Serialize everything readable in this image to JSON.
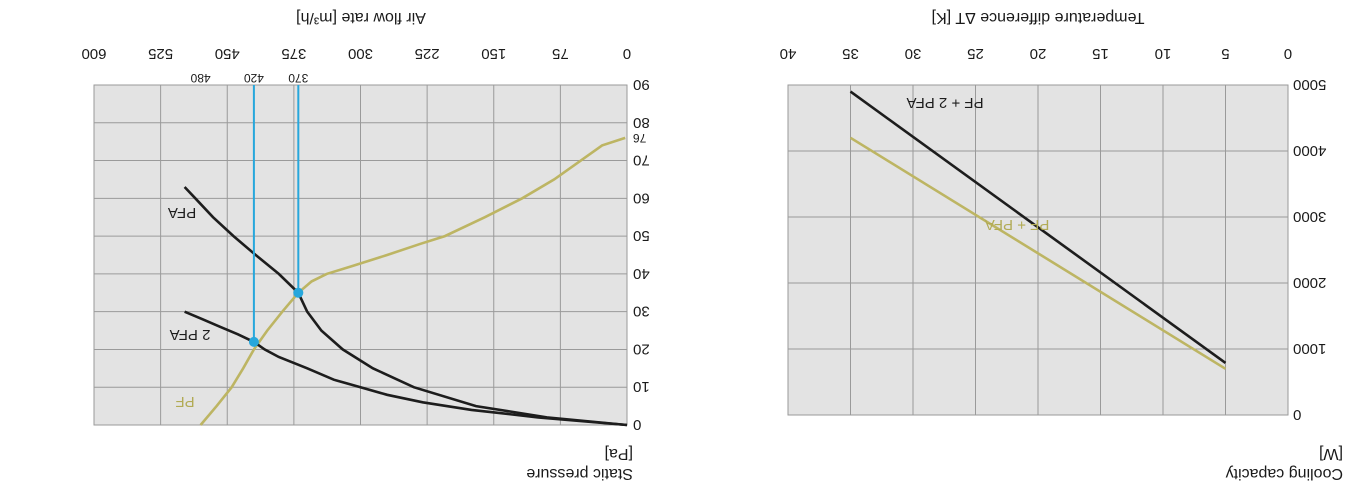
{
  "chart_data": [
    {
      "type": "line",
      "title": "",
      "xlabel_lines": [
        "Cooling capacity",
        "[W]"
      ],
      "ylabel": "Temperature difference ΔT [K]",
      "x_ticks": [
        "0",
        "1000",
        "2000",
        "3000",
        "4000",
        "5000"
      ],
      "y_ticks": [
        "0",
        "5",
        "10",
        "15",
        "20",
        "25",
        "30",
        "35",
        "40"
      ],
      "xlim": [
        0,
        5000
      ],
      "ylim": [
        0,
        40
      ],
      "grid": true,
      "series": [
        {
          "name": "PF + PFA",
          "color": "#bdb563",
          "points": [
            {
              "x": 700,
              "y": 5
            },
            {
              "x": 4200,
              "y": 35
            }
          ]
        },
        {
          "name": "PF + 2 PFA",
          "color": "#1d1d1d",
          "points": [
            {
              "x": 790,
              "y": 5
            },
            {
              "x": 4900,
              "y": 35
            }
          ]
        }
      ]
    },
    {
      "type": "line",
      "title": "",
      "xlabel_lines": [
        "Static pressure",
        "[Pa]"
      ],
      "ylabel": "Air flow rate [m³/h]",
      "x_ticks": [
        "0",
        "10",
        "20",
        "30",
        "40",
        "50",
        "60",
        "70",
        "80",
        "90"
      ],
      "y_ticks": [
        "0",
        "75",
        "150",
        "225",
        "300",
        "375",
        "450",
        "525",
        "600"
      ],
      "xlim": [
        0,
        90
      ],
      "ylim": [
        0,
        600
      ],
      "grid": true,
      "series": [
        {
          "name": "PF",
          "color": "#bdb563",
          "points": [
            {
              "x": 0,
              "y": 480
            },
            {
              "x": 5,
              "y": 462
            },
            {
              "x": 10,
              "y": 445
            },
            {
              "x": 15,
              "y": 432
            },
            {
              "x": 20,
              "y": 420
            },
            {
              "x": 25,
              "y": 405
            },
            {
              "x": 30,
              "y": 388
            },
            {
              "x": 35,
              "y": 370
            },
            {
              "x": 38,
              "y": 355
            },
            {
              "x": 40,
              "y": 338
            },
            {
              "x": 42,
              "y": 310
            },
            {
              "x": 45,
              "y": 270
            },
            {
              "x": 48,
              "y": 232
            },
            {
              "x": 50,
              "y": 205
            },
            {
              "x": 55,
              "y": 160
            },
            {
              "x": 60,
              "y": 118
            },
            {
              "x": 65,
              "y": 82
            },
            {
              "x": 70,
              "y": 52
            },
            {
              "x": 74,
              "y": 28
            },
            {
              "x": 76,
              "y": 2
            }
          ]
        },
        {
          "name": "PFA",
          "color": "#1d1d1d",
          "points": [
            {
              "x": 0,
              "y": 0
            },
            {
              "x": 2,
              "y": 90
            },
            {
              "x": 5,
              "y": 170
            },
            {
              "x": 10,
              "y": 240
            },
            {
              "x": 15,
              "y": 286
            },
            {
              "x": 20,
              "y": 320
            },
            {
              "x": 25,
              "y": 344
            },
            {
              "x": 30,
              "y": 360
            },
            {
              "x": 35,
              "y": 370
            },
            {
              "x": 40,
              "y": 392
            },
            {
              "x": 45,
              "y": 418
            },
            {
              "x": 50,
              "y": 443
            },
            {
              "x": 55,
              "y": 466
            },
            {
              "x": 60,
              "y": 486
            },
            {
              "x": 63,
              "y": 498
            }
          ]
        },
        {
          "name": "2 PFA",
          "color": "#1d1d1d",
          "points": [
            {
              "x": 0,
              "y": 0
            },
            {
              "x": 2,
              "y": 100
            },
            {
              "x": 4,
              "y": 175
            },
            {
              "x": 6,
              "y": 230
            },
            {
              "x": 8,
              "y": 270
            },
            {
              "x": 10,
              "y": 300
            },
            {
              "x": 12,
              "y": 330
            },
            {
              "x": 15,
              "y": 360
            },
            {
              "x": 18,
              "y": 392
            },
            {
              "x": 20,
              "y": 408
            },
            {
              "x": 22,
              "y": 420
            },
            {
              "x": 24,
              "y": 438
            },
            {
              "x": 26,
              "y": 458
            },
            {
              "x": 28,
              "y": 478
            },
            {
              "x": 30,
              "y": 498
            }
          ]
        }
      ],
      "operating_points": [
        {
          "x": 22,
          "y": 420,
          "label": "420"
        },
        {
          "x": 35,
          "y": 370,
          "label": "370"
        }
      ],
      "extra_x_tick": "76",
      "extra_y_tick": "480"
    }
  ]
}
